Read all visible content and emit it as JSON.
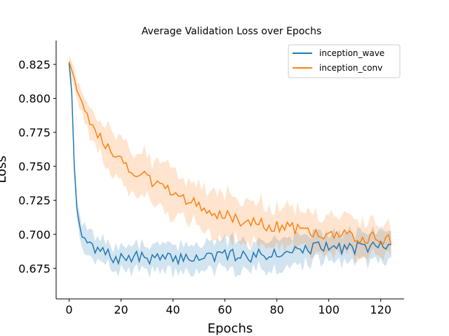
{
  "chart_data": {
    "type": "line",
    "title": "Average Validation Loss over Epochs",
    "xlabel": "Epochs",
    "ylabel": "Loss",
    "xlim": [
      -5,
      129
    ],
    "ylim": [
      0.6525,
      0.8425
    ],
    "xticks": [
      0,
      20,
      40,
      60,
      80,
      100,
      120
    ],
    "yticks": [
      0.675,
      0.7,
      0.725,
      0.75,
      0.775,
      0.8,
      0.825
    ],
    "grid": false,
    "legend_position": "top-right",
    "series": [
      {
        "name": "inception_wave",
        "color": "#1f77b4",
        "band_color": "#1f77b4",
        "keypoints": [
          [
            0,
            0.826
          ],
          [
            1,
            0.805
          ],
          [
            2,
            0.75
          ],
          [
            3,
            0.715
          ],
          [
            4,
            0.704
          ],
          [
            5,
            0.702
          ],
          [
            6,
            0.693
          ],
          [
            8,
            0.694
          ],
          [
            10,
            0.687
          ],
          [
            13,
            0.688
          ],
          [
            16,
            0.683
          ],
          [
            20,
            0.682
          ],
          [
            25,
            0.683
          ],
          [
            30,
            0.683
          ],
          [
            35,
            0.682
          ],
          [
            40,
            0.682
          ],
          [
            45,
            0.683
          ],
          [
            50,
            0.683
          ],
          [
            55,
            0.684
          ],
          [
            60,
            0.684
          ],
          [
            65,
            0.685
          ],
          [
            70,
            0.684
          ],
          [
            75,
            0.685
          ],
          [
            80,
            0.687
          ],
          [
            85,
            0.688
          ],
          [
            90,
            0.689
          ],
          [
            95,
            0.69
          ],
          [
            100,
            0.69
          ],
          [
            105,
            0.69
          ],
          [
            110,
            0.69
          ],
          [
            115,
            0.691
          ],
          [
            120,
            0.691
          ],
          [
            123,
            0.695
          ],
          [
            124,
            0.689
          ]
        ],
        "band_keypoints": [
          [
            0,
            0.004
          ],
          [
            2,
            0.008
          ],
          [
            4,
            0.01
          ],
          [
            10,
            0.009
          ],
          [
            20,
            0.009
          ],
          [
            40,
            0.01
          ],
          [
            60,
            0.01
          ],
          [
            80,
            0.011
          ],
          [
            100,
            0.011
          ],
          [
            124,
            0.01
          ]
        ],
        "noise_amplitude": 0.0045,
        "noise_seed": 7
      },
      {
        "name": "inception_conv",
        "color": "#ff7f0e",
        "band_color": "#ff7f0e",
        "keypoints": [
          [
            0,
            0.827
          ],
          [
            2,
            0.815
          ],
          [
            5,
            0.797
          ],
          [
            8,
            0.783
          ],
          [
            12,
            0.771
          ],
          [
            16,
            0.764
          ],
          [
            20,
            0.754
          ],
          [
            25,
            0.747
          ],
          [
            30,
            0.741
          ],
          [
            35,
            0.735
          ],
          [
            40,
            0.73
          ],
          [
            45,
            0.725
          ],
          [
            50,
            0.721
          ],
          [
            55,
            0.717
          ],
          [
            60,
            0.714
          ],
          [
            65,
            0.711
          ],
          [
            70,
            0.709
          ],
          [
            75,
            0.707
          ],
          [
            80,
            0.706
          ],
          [
            85,
            0.705
          ],
          [
            90,
            0.702
          ],
          [
            95,
            0.701
          ],
          [
            100,
            0.7
          ],
          [
            105,
            0.699
          ],
          [
            110,
            0.698
          ],
          [
            115,
            0.698
          ],
          [
            120,
            0.697
          ],
          [
            124,
            0.697
          ]
        ],
        "band_keypoints": [
          [
            0,
            0.006
          ],
          [
            5,
            0.008
          ],
          [
            15,
            0.014
          ],
          [
            30,
            0.016
          ],
          [
            50,
            0.016
          ],
          [
            70,
            0.015
          ],
          [
            90,
            0.014
          ],
          [
            110,
            0.013
          ],
          [
            124,
            0.011
          ]
        ],
        "noise_amplitude": 0.0045,
        "noise_seed": 13
      }
    ]
  }
}
